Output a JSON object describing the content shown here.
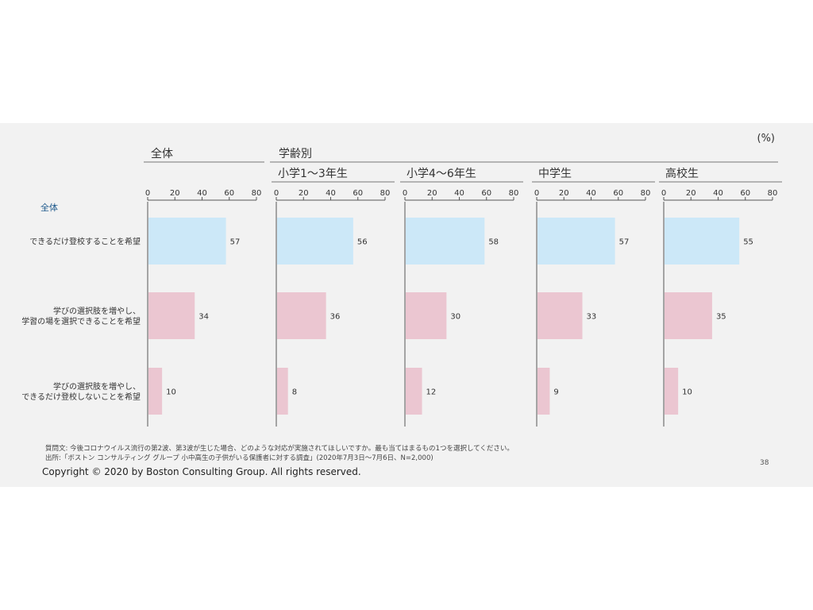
{
  "unit_label": "(%)",
  "overall_header": "全体",
  "byage_header": "学齢別",
  "row_group_label": "全体",
  "category_lines": [
    [
      "できるだけ登校することを希望"
    ],
    [
      "学びの選択肢を増やし、",
      "学習の場を選択できることを希望"
    ],
    [
      "学びの選択肢を増やし、",
      "できるだけ登校しないことを希望"
    ]
  ],
  "footnote_question": "質問文: 今後コロナウイルス流行の第2波、第3波が生じた場合、どのような対応が実施されてほしいですか。最も当てはまるもの1つを選択してください。",
  "footnote_source": "出所:「ボストン コンサルティング グループ 小中高生の子供がいる保護者に対する調査」(2020年7月3日〜7月6日、N=2,000)",
  "page_number": "38",
  "copyright": "Copyright © 2020 by Boston Consulting Group. All rights reserved.",
  "colors": {
    "first_bar": "#cce8f8",
    "other_bars": "#ebc6d1",
    "row_group_label": "#1f5a8c",
    "axis": "#555555"
  },
  "chart_data": {
    "type": "bar",
    "orientation": "horizontal",
    "xlim": [
      0,
      80
    ],
    "ticks": [
      0,
      20,
      40,
      60,
      80
    ],
    "categories": [
      "できるだけ登校することを希望",
      "学びの選択肢を増やし、学習の場を選択できることを希望",
      "学びの選択肢を増やし、できるだけ登校しないことを希望"
    ],
    "panels": [
      {
        "name": "全体",
        "values": [
          57,
          34,
          10
        ]
      },
      {
        "name": "小学1〜3年生",
        "values": [
          56,
          36,
          8
        ]
      },
      {
        "name": "小学4〜6年生",
        "values": [
          58,
          30,
          12
        ]
      },
      {
        "name": "中学生",
        "values": [
          57,
          33,
          9
        ]
      },
      {
        "name": "高校生",
        "values": [
          55,
          35,
          10
        ]
      }
    ]
  }
}
